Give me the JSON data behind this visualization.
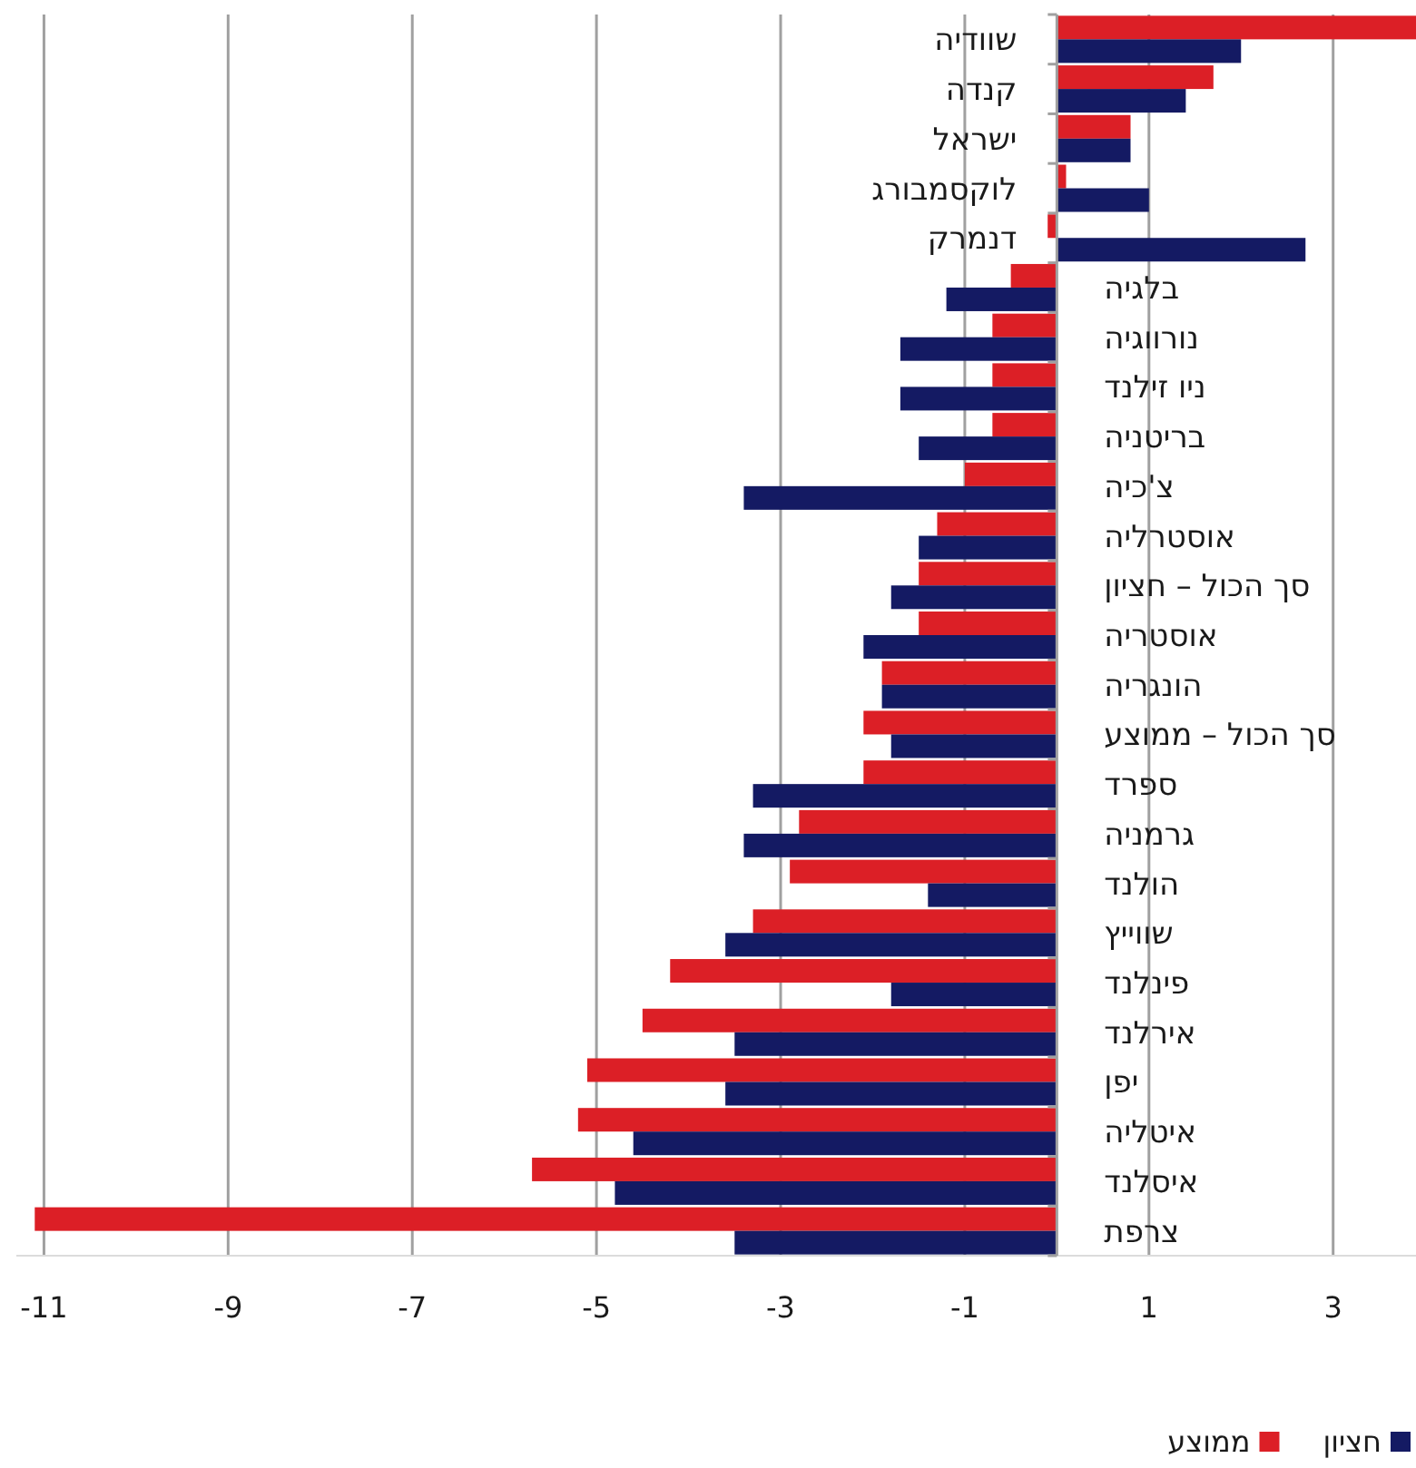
{
  "chart_data": {
    "type": "bar",
    "orientation": "horizontal",
    "categories": [
      "שוודיה",
      "קנדה",
      "ישראל",
      "לוקסמבורג",
      "דנמרק",
      "בלגיה",
      "נורווגיה",
      "ניו זילנד",
      "בריטניה",
      "צ'כיה",
      "אוסטרליה",
      "סך הכול – חציון",
      "אוסטריה",
      "הונגריה",
      "סך הכול – ממוצע",
      "ספרד",
      "גרמניה",
      "הולנד",
      "שווייץ",
      "פינלנד",
      "אירלנד",
      "יפן",
      "איטליה",
      "איסלנד",
      "צרפת"
    ],
    "series": [
      {
        "name": "ממוצע",
        "color": "#dc1f26",
        "values": [
          3.9,
          1.7,
          0.8,
          0.1,
          -0.1,
          -0.5,
          -0.7,
          -0.7,
          -0.7,
          -1.0,
          -1.3,
          -1.5,
          -1.5,
          -1.9,
          -2.1,
          -2.1,
          -2.8,
          -2.9,
          -3.3,
          -4.2,
          -4.5,
          -5.1,
          -5.2,
          -5.7,
          -11.1
        ]
      },
      {
        "name": "חציון",
        "color": "#141a63",
        "values": [
          2.0,
          1.4,
          0.8,
          1.0,
          2.7,
          -1.2,
          -1.7,
          -1.7,
          -1.5,
          -3.4,
          -1.5,
          -1.8,
          -2.1,
          -1.9,
          -1.8,
          -3.3,
          -3.4,
          -1.4,
          -3.6,
          -1.8,
          -3.5,
          -3.6,
          -4.6,
          -4.8,
          -3.5
        ]
      }
    ],
    "xlim": [
      -11.3,
      3.9
    ],
    "xticks": [
      -11,
      -9,
      -7,
      -5,
      -3,
      -1,
      1,
      3
    ],
    "grid": "x",
    "legend": "bottom right"
  }
}
